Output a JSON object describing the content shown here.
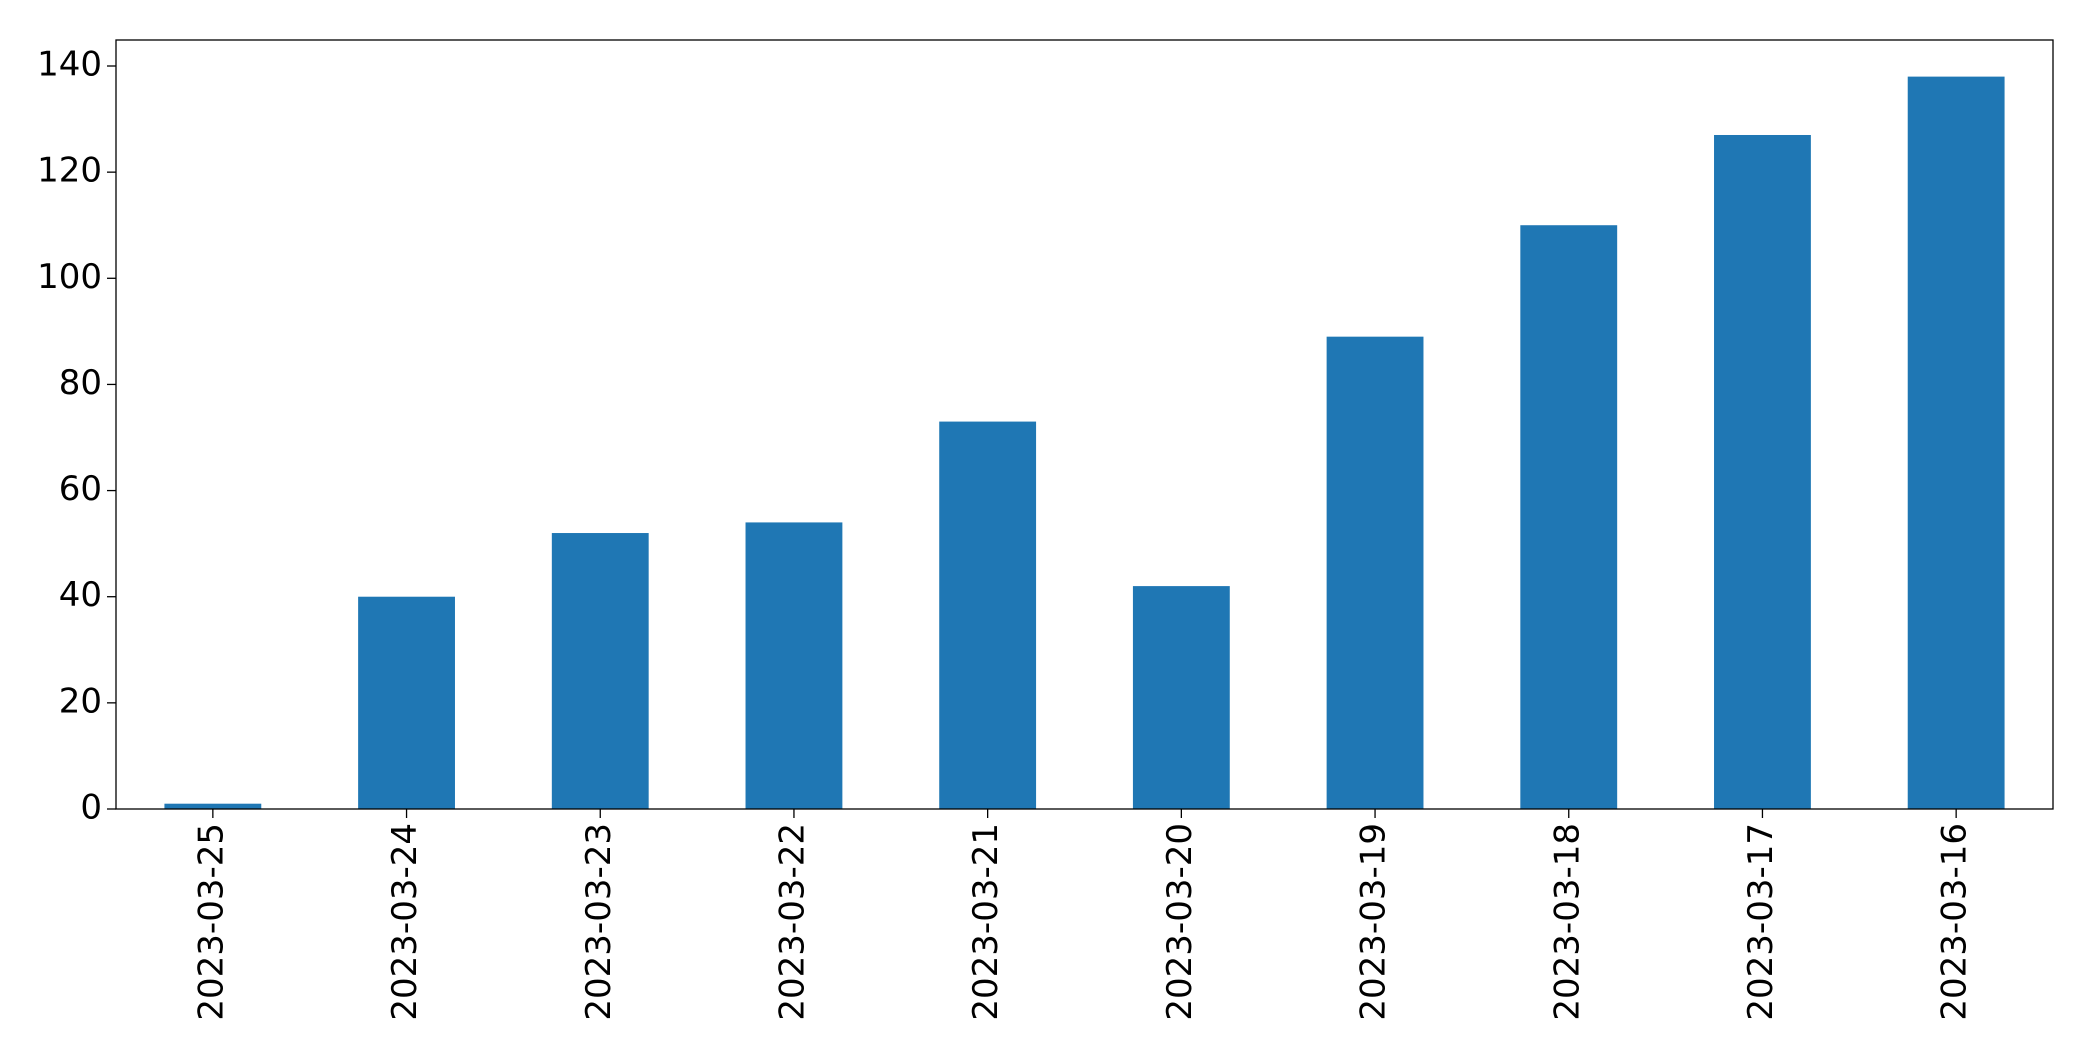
{
  "chart_data": {
    "type": "bar",
    "categories": [
      "2023-03-25",
      "2023-03-24",
      "2023-03-23",
      "2023-03-22",
      "2023-03-21",
      "2023-03-20",
      "2023-03-19",
      "2023-03-18",
      "2023-03-17",
      "2023-03-16"
    ],
    "values": [
      1,
      40,
      52,
      54,
      73,
      42,
      89,
      110,
      127,
      138
    ],
    "color": "#1f77b4",
    "ylim": [
      0,
      144.9
    ],
    "yticks": [
      0,
      20,
      40,
      60,
      80,
      100,
      120,
      140
    ],
    "grid": false
  }
}
